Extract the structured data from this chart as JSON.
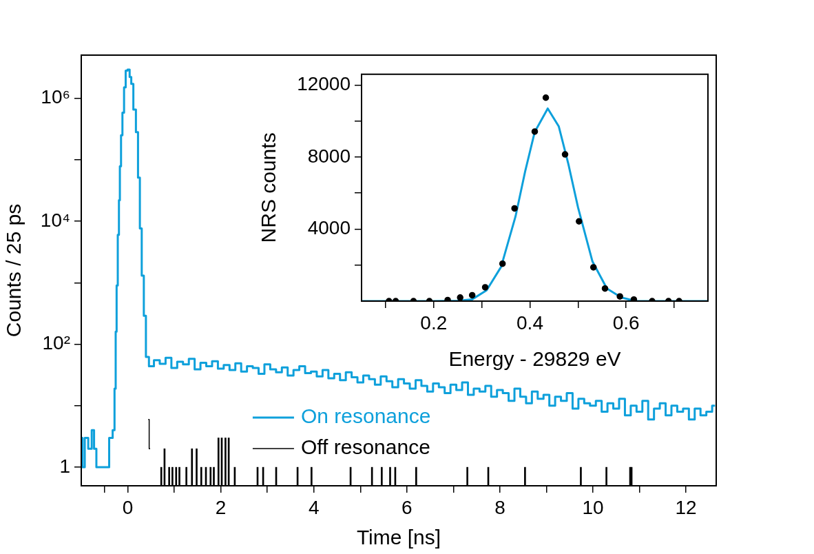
{
  "chart_data": [
    {
      "type": "step",
      "xlabel": "Time [ns]",
      "ylabel": "Counts / 25 ps",
      "log": "y",
      "legend": "bottom",
      "xlim": [
        -1,
        12.65
      ],
      "ylim": [
        0.5,
        5000000
      ],
      "xticks": [
        {
          "value": -0.5,
          "label": null
        },
        0,
        {
          "value": 1,
          "label": null
        },
        2,
        {
          "value": 3,
          "label": null
        },
        4,
        {
          "value": 5,
          "label": null
        },
        6,
        {
          "value": 7,
          "label": null
        },
        8,
        {
          "value": 9,
          "label": null
        },
        10,
        {
          "value": 11,
          "label": null
        },
        12
      ],
      "yticks": [
        1,
        {
          "value": 10,
          "label": null
        },
        {
          "value": 100,
          "label": "10²"
        },
        {
          "value": 1000,
          "label": null
        },
        {
          "value": 10000,
          "label": "10⁴"
        },
        {
          "value": 100000,
          "label": null
        },
        {
          "value": 1000000,
          "label": "10⁶"
        }
      ],
      "series": [
        {
          "name": "On resonance",
          "color": "#0ea0db",
          "x": [
            -1.0,
            -0.95,
            -0.9,
            -0.8,
            -0.75,
            -0.7,
            -0.65,
            -0.55,
            -0.45,
            -0.35,
            -0.3,
            -0.27,
            -0.25,
            -0.23,
            -0.2,
            -0.18,
            -0.16,
            -0.13,
            -0.1,
            -0.06,
            -0.03,
            0.02,
            0.06,
            0.09,
            0.15,
            0.2,
            0.24,
            0.28,
            0.32,
            0.37,
            0.41,
            0.5,
            0.625,
            0.75,
            0.875,
            1.0,
            1.125,
            1.25,
            1.375,
            1.5,
            1.625,
            1.75,
            1.875,
            2.0,
            2.125,
            2.25,
            2.375,
            2.5,
            2.625,
            2.75,
            2.875,
            3.0,
            3.125,
            3.25,
            3.375,
            3.5,
            3.625,
            3.75,
            3.875,
            4.0,
            4.125,
            4.25,
            4.375,
            4.5,
            4.625,
            4.75,
            4.875,
            5.0,
            5.125,
            5.25,
            5.375,
            5.5,
            5.625,
            5.75,
            5.875,
            6.0,
            6.125,
            6.25,
            6.375,
            6.5,
            6.625,
            6.75,
            6.875,
            7.0,
            7.125,
            7.25,
            7.375,
            7.5,
            7.625,
            7.75,
            7.875,
            8.0,
            8.125,
            8.25,
            8.375,
            8.5,
            8.625,
            8.75,
            8.875,
            9.0,
            9.125,
            9.25,
            9.375,
            9.5,
            9.625,
            9.75,
            9.875,
            10.0,
            10.125,
            10.25,
            10.375,
            10.5,
            10.625,
            10.75,
            10.875,
            11.0,
            11.125,
            11.25,
            11.375,
            11.5,
            11.625,
            11.75,
            11.875,
            12.0,
            12.125,
            12.25,
            12.375,
            12.5,
            12.625
          ],
          "values": [
            3,
            1,
            3,
            2,
            4,
            2,
            1,
            1,
            1,
            3,
            4,
            19,
            160,
            900,
            6000,
            22000,
            78000,
            250000,
            580000,
            1500000,
            2800000,
            2900000,
            2200000,
            1700000,
            650000,
            280000,
            51000,
            7600,
            1300,
            290,
            62,
            44,
            55,
            48,
            60,
            41,
            52,
            47,
            58,
            39,
            50,
            44,
            53,
            40,
            46,
            38,
            49,
            36,
            44,
            41,
            33,
            47,
            39,
            35,
            42,
            31,
            38,
            44,
            34,
            36,
            30,
            38,
            28,
            33,
            26,
            35,
            29,
            24,
            31,
            27,
            22,
            30,
            25,
            20,
            27,
            23,
            19,
            26,
            21,
            17,
            23,
            20,
            16,
            22,
            18,
            24,
            15,
            19,
            17,
            21,
            14,
            18,
            16,
            12,
            19,
            14,
            11,
            17,
            13,
            15,
            10,
            14,
            12,
            16,
            9,
            13,
            11,
            10,
            12,
            8,
            11,
            9,
            13,
            7,
            10,
            8,
            12,
            6,
            9,
            11,
            7,
            10,
            8,
            9,
            6,
            9,
            7,
            8,
            10
          ]
        },
        {
          "name": "Off resonance",
          "color": "#000000",
          "x": [
            0.44,
            0.48
          ],
          "values": [
            6,
            2
          ]
        },
        {
          "type": "bar",
          "color": "#000000",
          "x": [
            0.72,
            0.79,
            0.89,
            0.96,
            1.04,
            1.11,
            1.26,
            1.38,
            1.48,
            1.58,
            1.68,
            1.78,
            1.85,
            1.95,
            2.02,
            2.1,
            2.17,
            2.3,
            2.79,
            2.91,
            3.19,
            3.65,
            3.95,
            4.79,
            5.25,
            5.46,
            5.64,
            5.75,
            6.2,
            7.3,
            7.75,
            8.54,
            9.74,
            10.29,
            10.8,
            10.83
          ],
          "values": [
            1,
            2,
            1,
            1,
            1,
            1,
            1,
            2,
            2,
            1,
            1,
            1,
            1,
            3,
            3,
            3,
            3,
            1,
            1,
            1,
            1,
            1,
            1,
            1,
            1,
            1,
            1,
            1,
            1,
            1,
            1,
            1,
            1,
            1,
            1,
            1
          ]
        }
      ]
    },
    {
      "type": "scatter",
      "xlabel": "Energy - 29829 eV",
      "ylabel": "NRS counts",
      "xlim": [
        0.05,
        0.77
      ],
      "ylim": [
        0,
        12600
      ],
      "xticks": [
        {
          "value": 0.1,
          "label": null
        },
        0.2,
        {
          "value": 0.3,
          "label": null
        },
        0.4,
        {
          "value": 0.5,
          "label": null
        },
        0.6,
        {
          "value": 0.7,
          "label": null
        }
      ],
      "yticks": [
        {
          "value": 2000,
          "label": null
        },
        4000,
        {
          "value": 6000,
          "label": null
        },
        8000,
        {
          "value": 10000,
          "label": null
        },
        12000
      ],
      "series": [
        {
          "color": "#000000",
          "marker": "circle",
          "x": [
            0.107,
            0.121,
            0.158,
            0.191,
            0.229,
            0.255,
            0.28,
            0.307,
            0.343,
            0.368,
            0.41,
            0.433,
            0.473,
            0.502,
            0.532,
            0.556,
            0.587,
            0.616,
            0.654,
            0.688,
            0.71
          ],
          "values": [
            0,
            0,
            0,
            0,
            60,
            200,
            330,
            770,
            2080,
            5150,
            9420,
            11300,
            8150,
            4430,
            1880,
            700,
            260,
            90,
            0,
            0,
            0
          ]
        },
        {
          "type": "line",
          "color": "#0ea0db",
          "marker": "none",
          "x": [
            0.05,
            0.2,
            0.25,
            0.28,
            0.31,
            0.34,
            0.37,
            0.39,
            0.41,
            0.437,
            0.46,
            0.48,
            0.5,
            0.53,
            0.56,
            0.59,
            0.62,
            0.77
          ],
          "values": [
            0,
            0,
            20,
            100,
            600,
            1900,
            4700,
            7200,
            9400,
            10700,
            9700,
            7600,
            5200,
            2200,
            700,
            200,
            0,
            0
          ]
        }
      ]
    }
  ]
}
